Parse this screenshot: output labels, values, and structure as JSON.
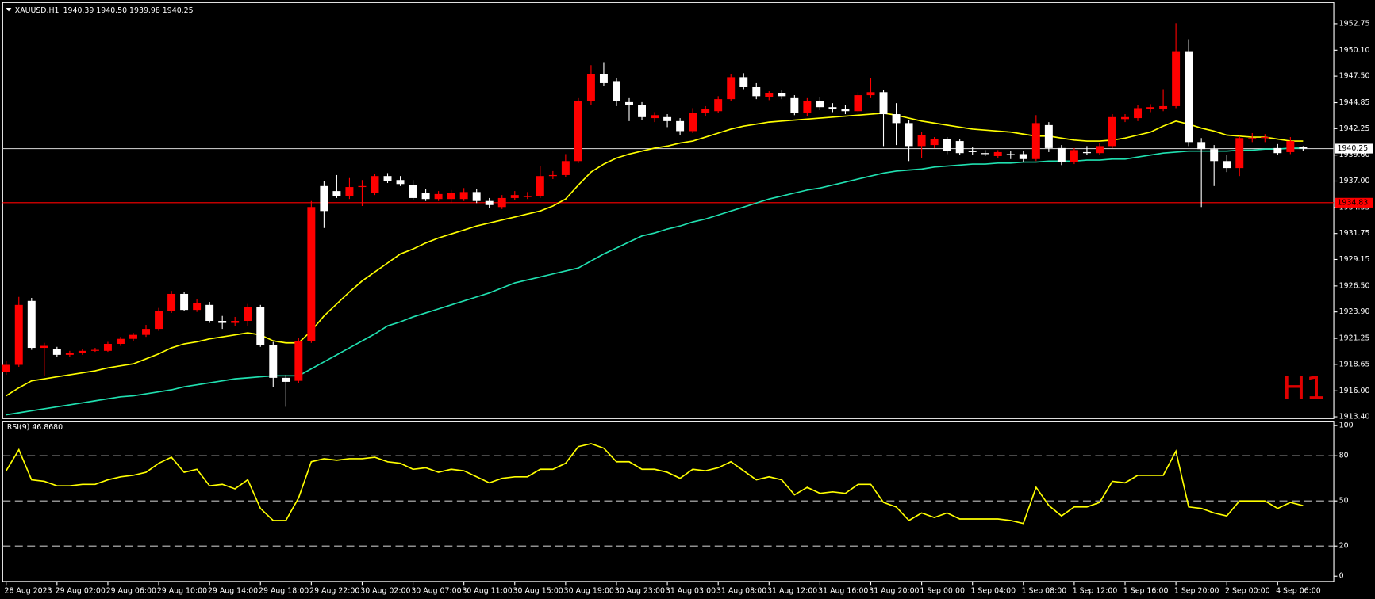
{
  "chart_data": [
    {
      "type": "candlestick",
      "title": "XAUUSD,H1",
      "subtitle": "1940.39 1940.50 1939.98 1940.25",
      "annotation": "H1",
      "bull_color": "#ff0000",
      "bear_color": "#ffffff",
      "categories": [
        "28 Aug 2023",
        null,
        null,
        null,
        "29 Aug 02:00",
        null,
        null,
        null,
        "29 Aug 06:00",
        null,
        null,
        null,
        "29 Aug 10:00",
        null,
        null,
        null,
        "29 Aug 14:00",
        null,
        null,
        null,
        "29 Aug 18:00",
        null,
        null,
        null,
        "29 Aug 22:00",
        null,
        null,
        null,
        "30 Aug 02:00",
        null,
        null,
        null,
        "30 Aug 07:00",
        null,
        null,
        null,
        "30 Aug 11:00",
        null,
        null,
        null,
        "30 Aug 15:00",
        null,
        null,
        null,
        "30 Aug 19:00",
        null,
        null,
        null,
        "30 Aug 23:00",
        null,
        null,
        null,
        "31 Aug 03:00",
        null,
        null,
        null,
        "31 Aug 08:00",
        null,
        null,
        null,
        "31 Aug 12:00",
        null,
        null,
        null,
        "31 Aug 16:00",
        null,
        null,
        null,
        "31 Aug 20:00",
        null,
        null,
        null,
        "1 Sep 00:00",
        null,
        null,
        null,
        "1 Sep 04:00",
        null,
        null,
        null,
        "1 Sep 08:00",
        null,
        null,
        null,
        "1 Sep 12:00",
        null,
        null,
        null,
        "1 Sep 16:00",
        null,
        null,
        null,
        "1 Sep 20:00",
        null,
        null,
        null,
        "2 Sep 00:00",
        null,
        null,
        null,
        "4 Sep 06:00",
        null,
        null
      ],
      "open": [
        1917.9,
        1918.6,
        1925.0,
        1920.3,
        1920.2,
        1919.6,
        1919.8,
        1920.0,
        1920.0,
        1920.7,
        1921.2,
        1921.6,
        1922.2,
        1924.0,
        1925.7,
        1924.1,
        1924.6,
        1923.0,
        1922.8,
        1923.0,
        1924.4,
        1920.6,
        1917.3,
        1917.0,
        1921.0,
        1936.5,
        1936.0,
        1935.5,
        1936.4,
        1935.8,
        1937.5,
        1937.1,
        1936.6,
        1935.8,
        1935.2,
        1935.2,
        1935.2,
        1935.9,
        1935.0,
        1934.4,
        1935.3,
        1935.4,
        1935.5,
        1937.5,
        1937.6,
        1939.0,
        1945.0,
        1947.7,
        1947.0,
        1944.9,
        1944.6,
        1943.3,
        1943.4,
        1943.0,
        1942.0,
        1943.8,
        1944.0,
        1945.2,
        1947.4,
        1946.4,
        1945.4,
        1945.8,
        1945.3,
        1943.8,
        1945.0,
        1944.4,
        1944.2,
        1944.0,
        1945.6,
        1945.9,
        1943.7,
        1942.8,
        1940.5,
        1940.6,
        1941.2,
        1941.0,
        1940.0,
        1939.8,
        1939.5,
        1939.7,
        1939.7,
        1939.2,
        1942.6,
        1940.3,
        1938.9,
        1939.9,
        1939.8,
        1940.5,
        1943.2,
        1943.3,
        1944.2,
        1944.2,
        1944.5,
        1950.0,
        1940.9,
        1940.2,
        1939.0,
        1938.3,
        1941.2,
        1941.3,
        1940.3,
        1939.9,
        1940.39
      ],
      "high": [
        1919.0,
        1925.4,
        1925.3,
        1920.8,
        1920.4,
        1920.0,
        1920.2,
        1920.3,
        1920.9,
        1921.4,
        1921.8,
        1922.6,
        1924.3,
        1926.0,
        1925.9,
        1925.2,
        1924.9,
        1923.5,
        1923.4,
        1924.7,
        1924.6,
        1920.9,
        1917.6,
        1921.3,
        1935.0,
        1937.0,
        1937.6,
        1937.3,
        1937.1,
        1937.7,
        1937.8,
        1937.5,
        1937.1,
        1936.2,
        1936.0,
        1936.1,
        1936.3,
        1936.2,
        1935.3,
        1935.6,
        1936.0,
        1935.9,
        1938.5,
        1938.0,
        1939.7,
        1945.3,
        1948.6,
        1948.9,
        1947.3,
        1945.3,
        1944.9,
        1943.9,
        1943.7,
        1943.3,
        1944.3,
        1944.5,
        1945.5,
        1947.7,
        1947.8,
        1946.8,
        1946.0,
        1946.1,
        1945.6,
        1945.3,
        1945.4,
        1944.8,
        1944.6,
        1945.9,
        1947.3,
        1946.1,
        1944.8,
        1943.1,
        1941.9,
        1941.4,
        1941.4,
        1941.2,
        1940.4,
        1940.1,
        1940.1,
        1940.0,
        1940.0,
        1943.6,
        1942.9,
        1940.6,
        1940.3,
        1940.5,
        1940.8,
        1943.7,
        1943.7,
        1944.6,
        1944.7,
        1946.2,
        1952.8,
        1951.2,
        1941.3,
        1940.6,
        1939.6,
        1941.5,
        1941.8,
        1941.7,
        1940.7,
        1941.4,
        1940.5
      ],
      "low": [
        1917.6,
        1918.4,
        1920.1,
        1917.5,
        1919.4,
        1919.4,
        1919.6,
        1919.9,
        1919.9,
        1920.5,
        1921.0,
        1921.4,
        1922.0,
        1923.8,
        1924.0,
        1923.9,
        1922.8,
        1922.2,
        1922.5,
        1922.5,
        1920.4,
        1916.4,
        1914.4,
        1916.8,
        1920.8,
        1932.3,
        1935.3,
        1935.2,
        1934.5,
        1935.6,
        1936.8,
        1936.5,
        1935.1,
        1935.0,
        1935.0,
        1934.8,
        1935.0,
        1934.8,
        1934.3,
        1934.2,
        1935.1,
        1935.2,
        1935.3,
        1937.2,
        1937.4,
        1938.8,
        1944.6,
        1946.5,
        1944.5,
        1943.0,
        1943.1,
        1942.9,
        1942.4,
        1941.6,
        1941.8,
        1943.5,
        1943.8,
        1945.0,
        1946.2,
        1945.2,
        1945.1,
        1945.2,
        1943.6,
        1943.5,
        1944.1,
        1943.9,
        1943.7,
        1943.8,
        1945.3,
        1940.5,
        1940.6,
        1939.0,
        1939.3,
        1940.3,
        1939.7,
        1939.6,
        1939.6,
        1939.5,
        1939.3,
        1939.2,
        1938.9,
        1939.0,
        1939.9,
        1938.6,
        1938.7,
        1939.6,
        1939.6,
        1940.3,
        1942.9,
        1943.0,
        1943.9,
        1944.0,
        1944.3,
        1940.5,
        1934.4,
        1936.5,
        1937.9,
        1937.5,
        1940.9,
        1940.9,
        1939.6,
        1939.7,
        1939.98
      ],
      "close": [
        1918.6,
        1924.6,
        1920.3,
        1920.5,
        1919.6,
        1919.8,
        1920.0,
        1920.1,
        1920.7,
        1921.2,
        1921.6,
        1922.2,
        1924.0,
        1925.7,
        1924.1,
        1924.8,
        1923.0,
        1922.8,
        1923.0,
        1924.4,
        1920.6,
        1917.3,
        1916.9,
        1921.0,
        1934.4,
        1934.0,
        1935.5,
        1936.4,
        1936.5,
        1937.5,
        1937.0,
        1936.7,
        1935.3,
        1935.2,
        1935.7,
        1935.8,
        1935.9,
        1935.0,
        1934.6,
        1935.3,
        1935.6,
        1935.5,
        1937.5,
        1937.6,
        1939.0,
        1945.0,
        1947.7,
        1946.8,
        1945.0,
        1944.6,
        1943.4,
        1943.6,
        1943.0,
        1942.0,
        1943.8,
        1944.2,
        1945.2,
        1947.4,
        1946.4,
        1945.5,
        1945.8,
        1945.5,
        1943.8,
        1945.0,
        1944.4,
        1944.2,
        1944.0,
        1945.6,
        1945.9,
        1943.7,
        1942.8,
        1940.5,
        1941.6,
        1941.2,
        1940.0,
        1939.8,
        1939.9,
        1939.7,
        1939.9,
        1939.6,
        1939.2,
        1942.8,
        1940.3,
        1938.9,
        1940.1,
        1939.8,
        1940.5,
        1943.4,
        1943.4,
        1944.3,
        1944.4,
        1944.5,
        1950.0,
        1940.9,
        1940.2,
        1939.0,
        1938.3,
        1941.3,
        1941.3,
        1941.4,
        1939.8,
        1941.0,
        1940.25
      ],
      "ma_lines": [
        {
          "color": "#ffff00",
          "values": [
            1915.5,
            1916.3,
            1917.0,
            1917.2,
            1917.4,
            1917.6,
            1917.8,
            1918.0,
            1918.3,
            1918.5,
            1918.7,
            1919.2,
            1919.7,
            1920.3,
            1920.7,
            1920.9,
            1921.2,
            1921.4,
            1921.6,
            1921.8,
            1921.6,
            1921.0,
            1920.8,
            1920.8,
            1922.0,
            1923.5,
            1924.7,
            1925.9,
            1927.0,
            1927.9,
            1928.8,
            1929.7,
            1930.2,
            1930.8,
            1931.3,
            1931.7,
            1932.1,
            1932.5,
            1932.8,
            1933.1,
            1933.4,
            1933.7,
            1934.0,
            1934.5,
            1935.2,
            1936.6,
            1937.9,
            1938.7,
            1939.3,
            1939.7,
            1940.0,
            1940.3,
            1940.5,
            1940.8,
            1941.0,
            1941.4,
            1941.8,
            1942.2,
            1942.5,
            1942.7,
            1942.9,
            1943.0,
            1943.1,
            1943.2,
            1943.3,
            1943.4,
            1943.5,
            1943.6,
            1943.7,
            1943.8,
            1943.6,
            1943.3,
            1943.0,
            1942.8,
            1942.6,
            1942.4,
            1942.2,
            1942.1,
            1942.0,
            1941.9,
            1941.7,
            1941.5,
            1941.5,
            1941.3,
            1941.1,
            1941.0,
            1941.0,
            1941.1,
            1941.3,
            1941.6,
            1941.9,
            1942.5,
            1943.0,
            1942.7,
            1942.3,
            1942.0,
            1941.6,
            1941.5,
            1941.4,
            1941.4,
            1941.2,
            1941.0,
            1941.0
          ]
        },
        {
          "color": "#20e0b0",
          "values": [
            1913.6,
            1913.8,
            1914.0,
            1914.2,
            1914.4,
            1914.6,
            1914.8,
            1915.0,
            1915.2,
            1915.4,
            1915.5,
            1915.7,
            1915.9,
            1916.1,
            1916.4,
            1916.6,
            1916.8,
            1917.0,
            1917.2,
            1917.3,
            1917.4,
            1917.5,
            1917.5,
            1917.5,
            1918.2,
            1918.9,
            1919.6,
            1920.3,
            1921.0,
            1921.7,
            1922.5,
            1922.9,
            1923.4,
            1923.8,
            1924.2,
            1924.6,
            1925.0,
            1925.4,
            1925.8,
            1926.3,
            1926.8,
            1927.1,
            1927.4,
            1927.7,
            1928.0,
            1928.3,
            1929.0,
            1929.7,
            1930.3,
            1930.9,
            1931.5,
            1931.8,
            1932.2,
            1932.5,
            1932.9,
            1933.2,
            1933.6,
            1934.0,
            1934.4,
            1934.8,
            1935.2,
            1935.5,
            1935.8,
            1936.1,
            1936.3,
            1936.6,
            1936.9,
            1937.2,
            1937.5,
            1937.8,
            1938.0,
            1938.1,
            1938.2,
            1938.4,
            1938.5,
            1938.6,
            1938.7,
            1938.7,
            1938.8,
            1938.8,
            1938.9,
            1938.9,
            1939.0,
            1939.0,
            1939.0,
            1939.1,
            1939.1,
            1939.2,
            1939.2,
            1939.4,
            1939.6,
            1939.8,
            1939.9,
            1940.0,
            1940.0,
            1940.0,
            1940.0,
            1940.1,
            1940.1,
            1940.2,
            1940.2,
            1940.3,
            1940.3
          ]
        }
      ],
      "hlines": [
        {
          "value": 1940.25,
          "color": "#c0c0c0",
          "label_color": "#ffffff"
        },
        {
          "value": 1934.83,
          "color": "#ff0000",
          "label_color": "#ff0000"
        }
      ],
      "ylim": [
        1913.22,
        1954.86
      ],
      "yticks": [
        {
          "value": 1913.4,
          "label": "1913.40"
        },
        {
          "value": 1916.0,
          "label": "1916.00"
        },
        1918.65,
        1921.25,
        {
          "value": 1923.9,
          "label": "1923.90"
        },
        {
          "value": 1926.5,
          "label": "1926.50"
        },
        1929.15,
        1931.75,
        1934.35,
        {
          "value": 1937.0,
          "label": "1937.00"
        },
        {
          "value": 1939.6,
          "label": "1939.60"
        },
        1942.25,
        1944.85,
        {
          "value": 1947.5,
          "label": "1947.50"
        },
        {
          "value": 1950.1,
          "label": "1950.10"
        },
        1952.75
      ]
    },
    {
      "type": "line",
      "title": "RSI(9) 46.8680",
      "color": "#ffff00",
      "values": [
        70,
        84,
        64,
        63,
        60,
        60,
        61,
        61,
        64,
        66,
        67,
        69,
        75,
        79,
        69,
        71,
        60,
        61,
        58,
        64,
        45,
        37,
        37,
        52,
        76,
        78,
        77,
        78,
        78,
        79,
        76,
        75,
        71,
        72,
        69,
        71,
        70,
        66,
        62,
        65,
        66,
        66,
        71,
        71,
        75,
        86,
        88,
        85,
        76,
        76,
        71,
        71,
        69,
        65,
        71,
        70,
        72,
        76,
        70,
        64,
        66,
        64,
        54,
        59,
        55,
        56,
        55,
        61,
        61,
        49,
        46,
        37,
        42,
        39,
        42,
        38,
        38,
        38,
        38,
        37,
        35,
        59,
        47,
        40,
        46,
        46,
        49,
        63,
        62,
        67,
        67,
        67,
        83,
        46,
        45,
        42,
        40,
        50,
        50,
        50,
        45,
        49,
        46.868
      ],
      "ylim": [
        -3.5,
        102.9
      ],
      "yticks": [
        0,
        20,
        50,
        80,
        100
      ],
      "levels": [
        20,
        50,
        80
      ]
    }
  ]
}
